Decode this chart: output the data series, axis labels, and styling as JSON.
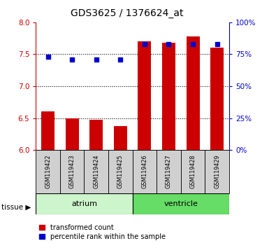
{
  "title": "GDS3625 / 1376624_at",
  "samples": [
    "GSM119422",
    "GSM119423",
    "GSM119424",
    "GSM119425",
    "GSM119426",
    "GSM119427",
    "GSM119428",
    "GSM119429"
  ],
  "groups": [
    "atrium",
    "atrium",
    "atrium",
    "atrium",
    "ventricle",
    "ventricle",
    "ventricle",
    "ventricle"
  ],
  "bar_values": [
    6.6,
    6.5,
    6.47,
    6.38,
    7.7,
    7.68,
    7.78,
    7.6
  ],
  "percentile_values": [
    73,
    71,
    71,
    71,
    83,
    83,
    83,
    83
  ],
  "bar_color": "#cc0000",
  "dot_color": "#0000cc",
  "ymin": 6.0,
  "ymax": 8.0,
  "yticks": [
    6.0,
    6.5,
    7.0,
    7.5,
    8.0
  ],
  "right_yticks": [
    0,
    25,
    50,
    75,
    100
  ],
  "group_colors": {
    "atrium": "#ccf5cc",
    "ventricle": "#66dd66"
  },
  "tissue_label": "tissue",
  "legend_bar_label": "transformed count",
  "legend_dot_label": "percentile rank within the sample",
  "left_tick_color": "#cc0000",
  "right_tick_color": "#0000cc"
}
